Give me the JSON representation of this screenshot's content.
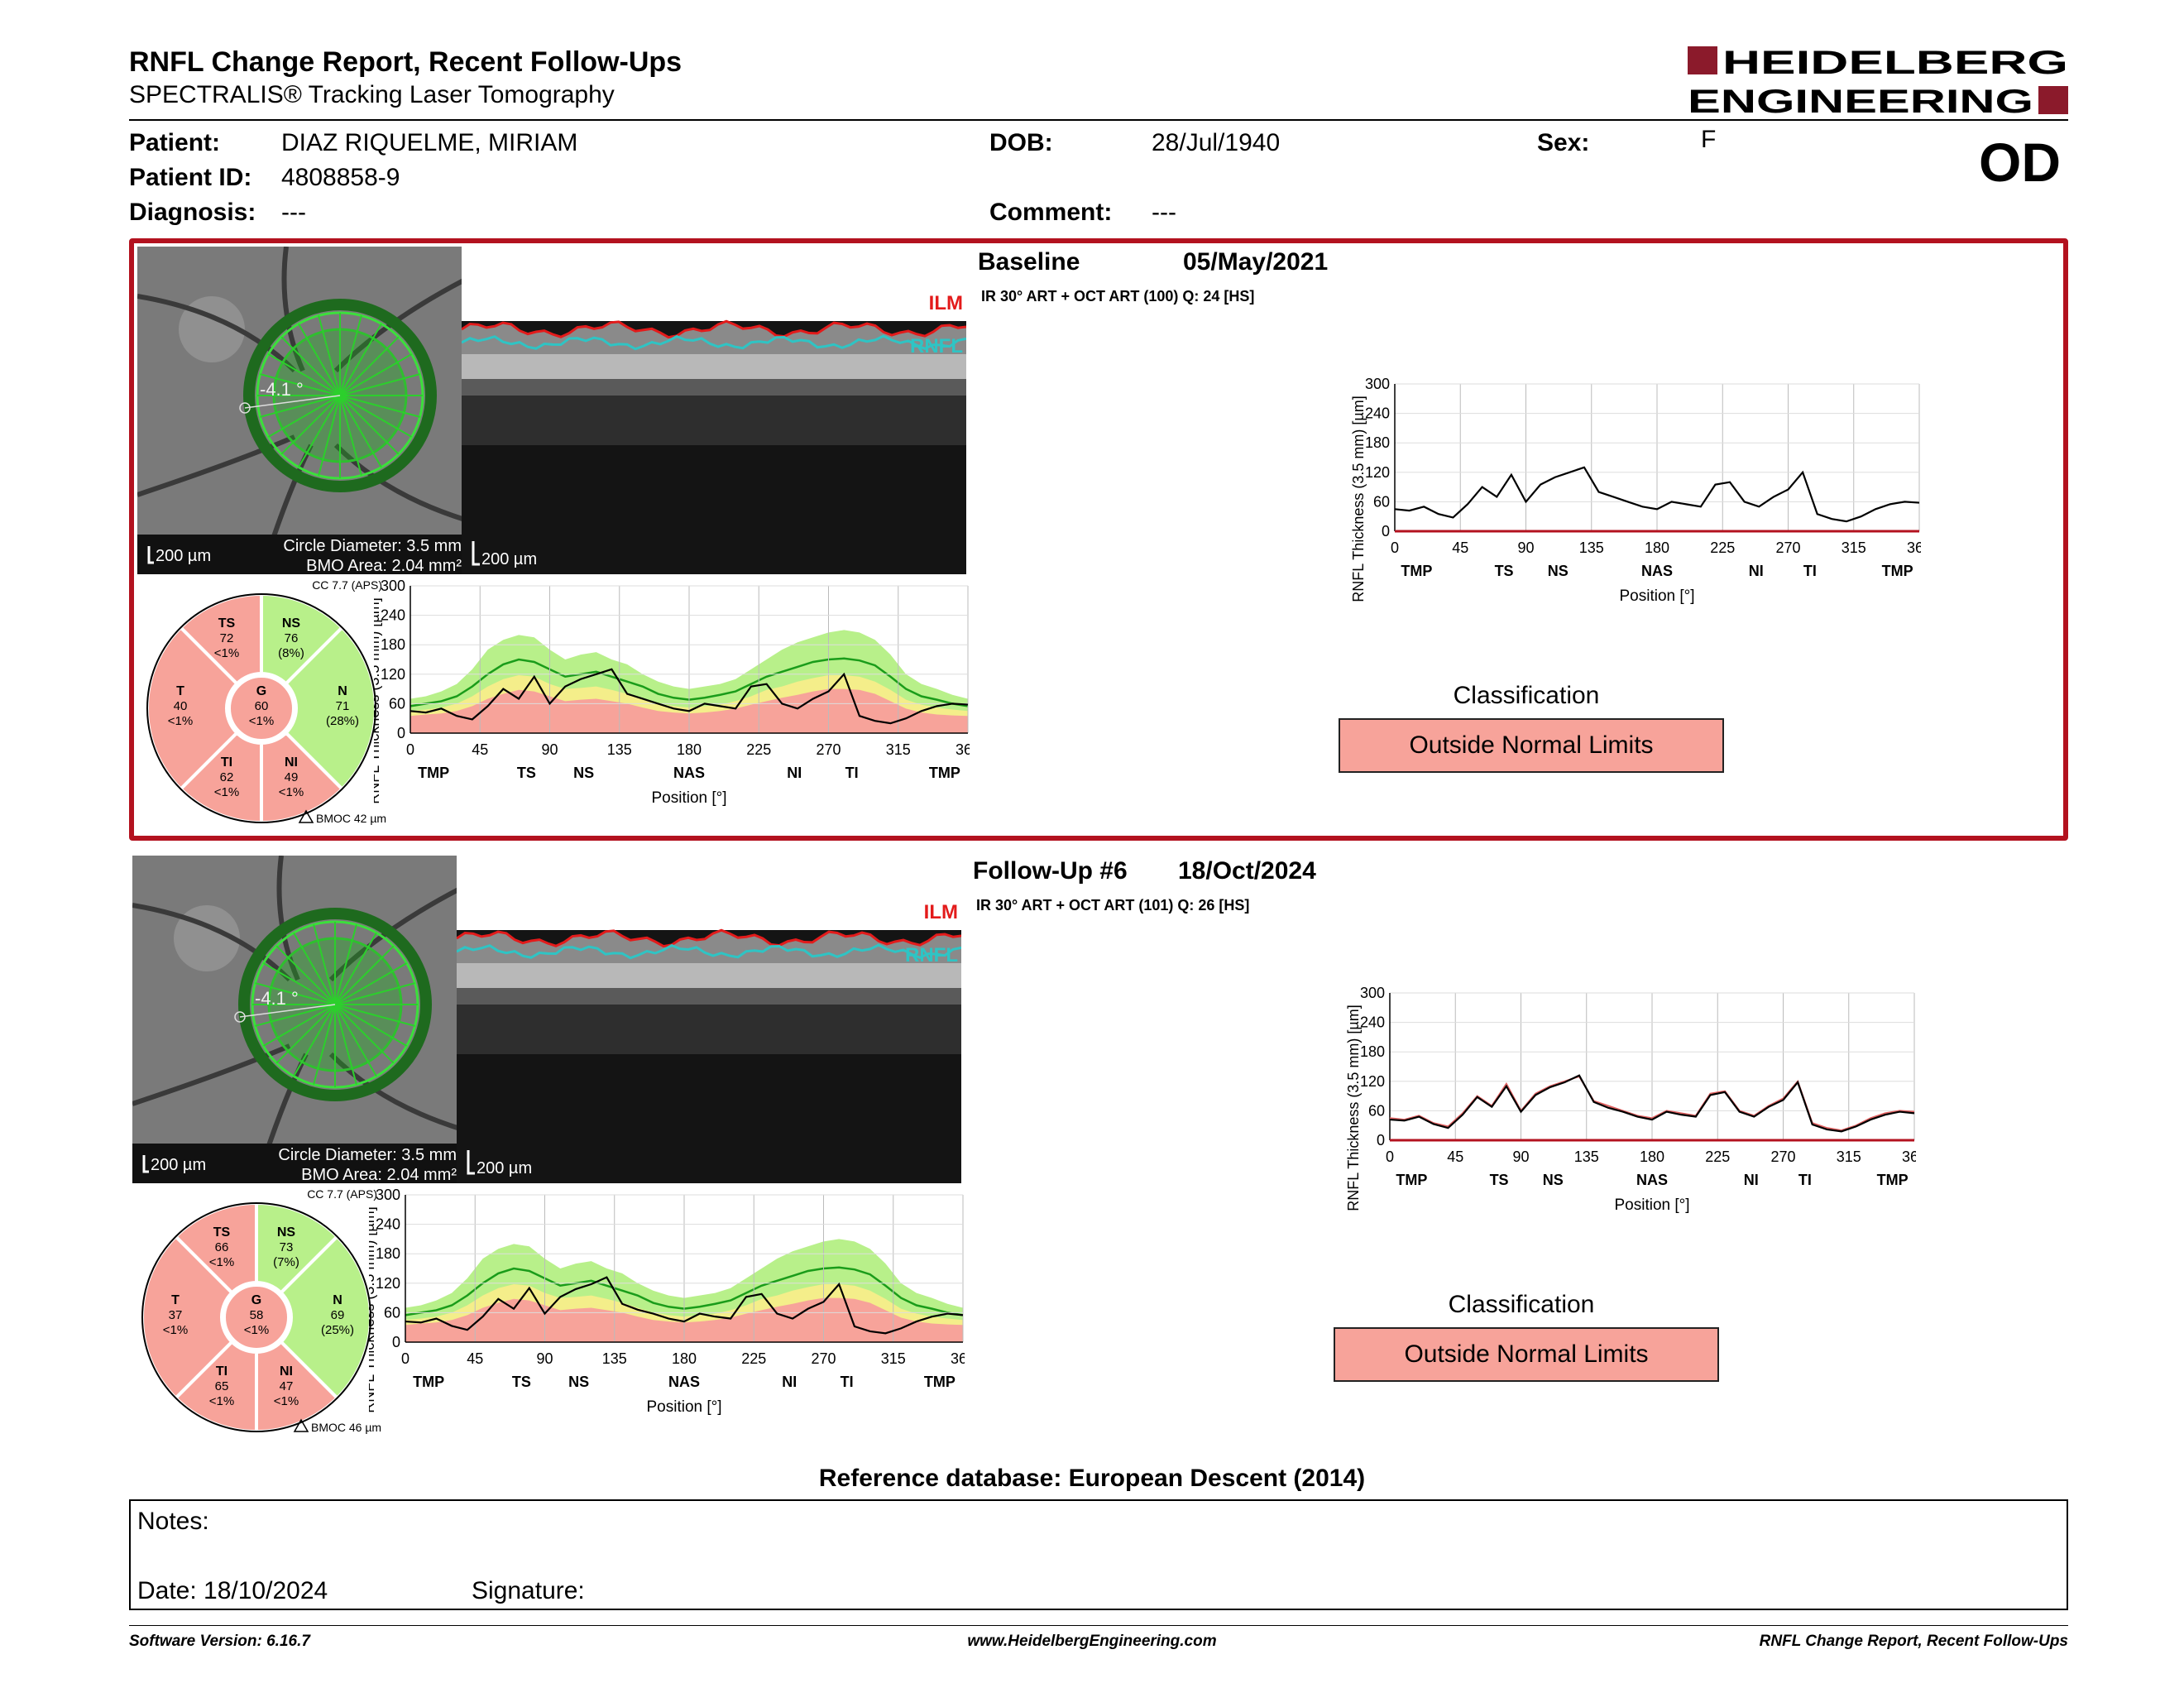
{
  "report": {
    "title": "RNFL Change Report, Recent Follow-Ups",
    "subtitle": "SPECTRALIS® Tracking Laser Tomography",
    "logo": {
      "line1": "HEIDELBERG",
      "line2": "ENGINEERING"
    },
    "eye": "OD"
  },
  "patient": {
    "name_label": "Patient:",
    "name": "DIAZ RIQUELME, MIRIAM",
    "id_label": "Patient ID:",
    "id": "4808858-9",
    "diagnosis_label": "Diagnosis:",
    "diagnosis": "---",
    "dob_label": "DOB:",
    "dob": "28/Jul/1940",
    "comment_label": "Comment:",
    "comment": "---",
    "sex_label": "Sex:",
    "sex": "F"
  },
  "exams": [
    {
      "label": "Baseline",
      "date": "05/May/2021",
      "scan_info": "IR 30° ART + OCT ART (100) Q: 24 [HS]",
      "fundus": {
        "angle": "-4.1 °",
        "scale": "200 µm",
        "circle": "Circle Diameter: 3.5 mm",
        "bmo": "BMO Area: 2.04 mm²"
      },
      "oct": {
        "scale": "200 µm",
        "ilm": "ILM",
        "rnfl": "RNFL"
      },
      "sectors": {
        "cc": "CC 7.7 (APS)",
        "bmoc": "BMOC 42 µm",
        "TS": {
          "name": "TS",
          "value": "72",
          "pct": "<1%"
        },
        "NS": {
          "name": "NS",
          "value": "76",
          "pct": "(8%)"
        },
        "T": {
          "name": "T",
          "value": "40",
          "pct": "<1%"
        },
        "G": {
          "name": "G",
          "value": "60",
          "pct": "<1%"
        },
        "N": {
          "name": "N",
          "value": "71",
          "pct": "(28%)"
        },
        "TI": {
          "name": "TI",
          "value": "62",
          "pct": "<1%"
        },
        "NI": {
          "name": "NI",
          "value": "49",
          "pct": "<1%"
        }
      },
      "classification_title": "Classification",
      "classification": "Outside Normal Limits"
    },
    {
      "label": "Follow-Up #6",
      "date": "18/Oct/2024",
      "scan_info": "IR 30° ART + OCT ART (101) Q: 26 [HS]",
      "fundus": {
        "angle": "-4.1 °",
        "scale": "200 µm",
        "circle": "Circle Diameter: 3.5 mm",
        "bmo": "BMO Area: 2.04 mm²"
      },
      "oct": {
        "scale": "200 µm",
        "ilm": "ILM",
        "rnfl": "RNFL"
      },
      "sectors": {
        "cc": "CC 7.7 (APS)",
        "bmoc": "BMOC 46 µm",
        "TS": {
          "name": "TS",
          "value": "66",
          "pct": "<1%"
        },
        "NS": {
          "name": "NS",
          "value": "73",
          "pct": "(7%)"
        },
        "T": {
          "name": "T",
          "value": "37",
          "pct": "<1%"
        },
        "G": {
          "name": "G",
          "value": "58",
          "pct": "<1%"
        },
        "N": {
          "name": "N",
          "value": "69",
          "pct": "(25%)"
        },
        "TI": {
          "name": "TI",
          "value": "65",
          "pct": "<1%"
        },
        "NI": {
          "name": "NI",
          "value": "47",
          "pct": "<1%"
        }
      },
      "classification_title": "Classification",
      "classification": "Outside Normal Limits"
    }
  ],
  "chart_data": [
    {
      "type": "line",
      "id": "baseline-normative",
      "xlabel": "Position [°]",
      "ylabel": "RNFL Thickness (3.5 mm) [µm]",
      "xlim": [
        0,
        360
      ],
      "ylim": [
        0,
        300
      ],
      "xticks": [
        0,
        45,
        90,
        135,
        180,
        225,
        270,
        315,
        360
      ],
      "yticks": [
        0,
        60,
        120,
        180,
        240,
        300
      ],
      "sector_labels": [
        "TMP",
        "TS",
        "NS",
        "NAS",
        "NI",
        "TI",
        "TMP"
      ],
      "x": [
        0,
        10,
        20,
        30,
        40,
        50,
        60,
        70,
        80,
        90,
        100,
        110,
        120,
        130,
        140,
        150,
        160,
        170,
        180,
        190,
        200,
        210,
        220,
        230,
        240,
        250,
        260,
        270,
        280,
        290,
        300,
        310,
        320,
        330,
        340,
        350,
        360
      ],
      "normal_upper": [
        70,
        75,
        85,
        100,
        130,
        170,
        190,
        200,
        195,
        170,
        150,
        160,
        165,
        150,
        140,
        120,
        105,
        95,
        90,
        95,
        100,
        110,
        130,
        150,
        170,
        185,
        195,
        205,
        210,
        205,
        190,
        160,
        120,
        100,
        90,
        78,
        70
      ],
      "normal_mean": [
        55,
        60,
        65,
        75,
        95,
        120,
        140,
        150,
        145,
        130,
        115,
        120,
        125,
        115,
        105,
        95,
        80,
        72,
        68,
        72,
        78,
        85,
        100,
        115,
        125,
        135,
        145,
        150,
        152,
        148,
        138,
        115,
        90,
        75,
        68,
        60,
        55
      ],
      "borderline": [
        45,
        48,
        52,
        60,
        75,
        95,
        110,
        118,
        115,
        100,
        90,
        92,
        95,
        88,
        80,
        70,
        60,
        55,
        52,
        55,
        58,
        65,
        75,
        88,
        95,
        105,
        112,
        118,
        118,
        115,
        105,
        88,
        68,
        58,
        52,
        48,
        45
      ],
      "outside": [
        35,
        38,
        40,
        45,
        55,
        70,
        80,
        88,
        85,
        75,
        65,
        68,
        70,
        65,
        60,
        52,
        45,
        42,
        40,
        42,
        45,
        50,
        58,
        65,
        72,
        78,
        85,
        90,
        90,
        88,
        80,
        65,
        50,
        42,
        38,
        36,
        35
      ],
      "series": [
        {
          "values": [
            45,
            42,
            50,
            35,
            28,
            55,
            90,
            70,
            115,
            60,
            95,
            110,
            120,
            130,
            80,
            70,
            60,
            50,
            45,
            60,
            55,
            50,
            95,
            100,
            60,
            50,
            70,
            85,
            120,
            35,
            25,
            20,
            30,
            45,
            55,
            60,
            58
          ]
        }
      ]
    },
    {
      "type": "line",
      "id": "baseline-change",
      "xlabel": "Position [°]",
      "ylabel": "RNFL Thickness (3.5 mm) [µm]",
      "xlim": [
        0,
        360
      ],
      "ylim": [
        0,
        300
      ],
      "xticks": [
        0,
        45,
        90,
        135,
        180,
        225,
        270,
        315,
        360
      ],
      "yticks": [
        0,
        60,
        120,
        180,
        240,
        300
      ],
      "sector_labels": [
        "TMP",
        "TS",
        "NS",
        "NAS",
        "NI",
        "TI",
        "TMP"
      ],
      "x": [
        0,
        10,
        20,
        30,
        40,
        50,
        60,
        70,
        80,
        90,
        100,
        110,
        120,
        130,
        140,
        150,
        160,
        170,
        180,
        190,
        200,
        210,
        220,
        230,
        240,
        250,
        260,
        270,
        280,
        290,
        300,
        310,
        320,
        330,
        340,
        350,
        360
      ],
      "series": [
        {
          "values": [
            45,
            42,
            50,
            35,
            28,
            55,
            90,
            70,
            115,
            60,
            95,
            110,
            120,
            130,
            80,
            70,
            60,
            50,
            45,
            60,
            55,
            50,
            95,
            100,
            60,
            50,
            70,
            85,
            120,
            35,
            25,
            20,
            30,
            45,
            55,
            60,
            58
          ]
        }
      ]
    },
    {
      "type": "line",
      "id": "followup-normative",
      "xlabel": "Position [°]",
      "ylabel": "RNFL Thickness (3.5 mm) [µm]",
      "xlim": [
        0,
        360
      ],
      "ylim": [
        0,
        300
      ],
      "xticks": [
        0,
        45,
        90,
        135,
        180,
        225,
        270,
        315,
        360
      ],
      "yticks": [
        0,
        60,
        120,
        180,
        240,
        300
      ],
      "sector_labels": [
        "TMP",
        "TS",
        "NS",
        "NAS",
        "NI",
        "TI",
        "TMP"
      ],
      "x": [
        0,
        10,
        20,
        30,
        40,
        50,
        60,
        70,
        80,
        90,
        100,
        110,
        120,
        130,
        140,
        150,
        160,
        170,
        180,
        190,
        200,
        210,
        220,
        230,
        240,
        250,
        260,
        270,
        280,
        290,
        300,
        310,
        320,
        330,
        340,
        350,
        360
      ],
      "normal_upper": [
        70,
        75,
        85,
        100,
        130,
        170,
        190,
        200,
        195,
        170,
        150,
        160,
        165,
        150,
        140,
        120,
        105,
        95,
        90,
        95,
        100,
        110,
        130,
        150,
        170,
        185,
        195,
        205,
        210,
        205,
        190,
        160,
        120,
        100,
        90,
        78,
        70
      ],
      "normal_mean": [
        55,
        60,
        65,
        75,
        95,
        120,
        140,
        150,
        145,
        130,
        115,
        120,
        125,
        115,
        105,
        95,
        80,
        72,
        68,
        72,
        78,
        85,
        100,
        115,
        125,
        135,
        145,
        150,
        152,
        148,
        138,
        115,
        90,
        75,
        68,
        60,
        55
      ],
      "borderline": [
        45,
        48,
        52,
        60,
        75,
        95,
        110,
        118,
        115,
        100,
        90,
        92,
        95,
        88,
        80,
        70,
        60,
        55,
        52,
        55,
        58,
        65,
        75,
        88,
        95,
        105,
        112,
        118,
        118,
        115,
        105,
        88,
        68,
        58,
        52,
        48,
        45
      ],
      "outside": [
        35,
        38,
        40,
        45,
        55,
        70,
        80,
        88,
        85,
        75,
        65,
        68,
        70,
        65,
        60,
        52,
        45,
        42,
        40,
        42,
        45,
        50,
        58,
        65,
        72,
        78,
        85,
        90,
        90,
        88,
        80,
        65,
        50,
        42,
        38,
        36,
        35
      ],
      "series": [
        {
          "values": [
            42,
            40,
            48,
            33,
            25,
            52,
            88,
            68,
            110,
            58,
            92,
            108,
            118,
            132,
            78,
            66,
            58,
            48,
            42,
            58,
            52,
            48,
            92,
            98,
            58,
            48,
            68,
            82,
            118,
            32,
            22,
            18,
            28,
            42,
            52,
            58,
            55
          ]
        }
      ]
    },
    {
      "type": "line",
      "id": "followup-change",
      "xlabel": "Position [°]",
      "ylabel": "RNFL Thickness (3.5 mm) [µm]",
      "xlim": [
        0,
        360
      ],
      "ylim": [
        0,
        300
      ],
      "xticks": [
        0,
        45,
        90,
        135,
        180,
        225,
        270,
        315,
        360
      ],
      "yticks": [
        0,
        60,
        120,
        180,
        240,
        300
      ],
      "sector_labels": [
        "TMP",
        "TS",
        "NS",
        "NAS",
        "NI",
        "TI",
        "TMP"
      ],
      "x": [
        0,
        10,
        20,
        30,
        40,
        50,
        60,
        70,
        80,
        90,
        100,
        110,
        120,
        130,
        140,
        150,
        160,
        170,
        180,
        190,
        200,
        210,
        220,
        230,
        240,
        250,
        260,
        270,
        280,
        290,
        300,
        310,
        320,
        330,
        340,
        350,
        360
      ],
      "series": [
        {
          "values": [
            45,
            42,
            50,
            35,
            28,
            55,
            90,
            70,
            115,
            60,
            95,
            110,
            120,
            130,
            80,
            70,
            60,
            50,
            45,
            60,
            55,
            50,
            95,
            100,
            60,
            50,
            70,
            85,
            120,
            35,
            25,
            20,
            30,
            45,
            55,
            60,
            58
          ]
        },
        {
          "values": [
            42,
            40,
            48,
            33,
            25,
            52,
            88,
            68,
            110,
            58,
            92,
            108,
            118,
            132,
            78,
            66,
            58,
            48,
            42,
            58,
            52,
            48,
            92,
            98,
            58,
            48,
            68,
            82,
            118,
            32,
            22,
            18,
            28,
            42,
            52,
            58,
            55
          ]
        }
      ]
    }
  ],
  "reference": "Reference database: European Descent (2014)",
  "notes": {
    "label": "Notes:",
    "date_label": "Date: 18/10/2024",
    "signature_label": "Signature:"
  },
  "footer": {
    "version": "Software Version: 6.16.7",
    "url": "www.HeidelbergEngineering.com",
    "report_name": "RNFL Change Report, Recent Follow-Ups"
  },
  "colors": {
    "frame": "#b3121f",
    "outside": "#f7a39a",
    "borderline": "#f4ee8a",
    "normal": "#b8f08a",
    "mean": "#1a9c1a",
    "logo": "#8b1a2b"
  }
}
